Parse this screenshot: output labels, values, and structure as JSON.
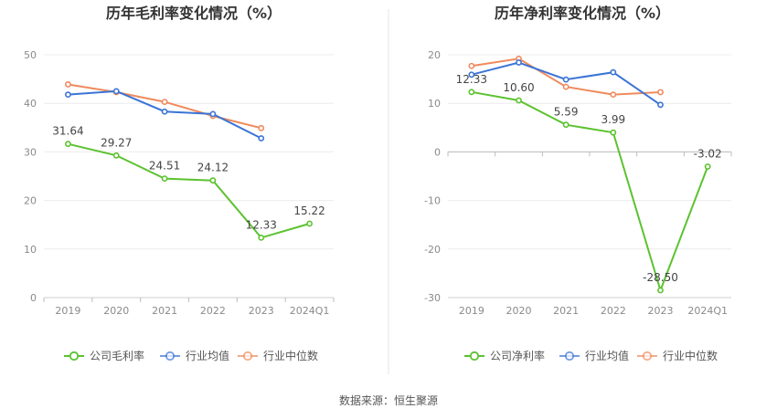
{
  "source_text": "数据来源：恒生聚源",
  "chart_data": [
    {
      "type": "line",
      "title": "历年毛利率变化情况（%）",
      "categories": [
        "2019",
        "2020",
        "2021",
        "2022",
        "2023",
        "2024Q1"
      ],
      "ylim": [
        0,
        50
      ],
      "yticks": [
        0,
        10,
        20,
        30,
        40,
        50
      ],
      "grid": true,
      "legend_position": "bottom",
      "series": [
        {
          "name": "公司毛利率",
          "color": "#5cc22f",
          "labels": true,
          "values": [
            31.64,
            29.27,
            24.51,
            24.12,
            12.33,
            15.22
          ]
        },
        {
          "name": "行业均值",
          "color": "#3b74d6",
          "labels": false,
          "values": [
            41.8,
            42.5,
            38.3,
            37.8,
            32.8,
            null
          ]
        },
        {
          "name": "行业中位数",
          "color": "#ef8a5c",
          "labels": false,
          "values": [
            43.9,
            42.3,
            40.3,
            37.4,
            34.9,
            null
          ]
        }
      ]
    },
    {
      "type": "line",
      "title": "历年净利率变化情况（%）",
      "categories": [
        "2019",
        "2020",
        "2021",
        "2022",
        "2023",
        "2024Q1"
      ],
      "ylim": [
        -30,
        20
      ],
      "yticks": [
        -30,
        -20,
        -10,
        0,
        10,
        20
      ],
      "grid": true,
      "legend_position": "bottom",
      "series": [
        {
          "name": "公司净利率",
          "color": "#5cc22f",
          "labels": true,
          "values": [
            12.33,
            10.6,
            5.59,
            3.99,
            -28.5,
            -3.02
          ]
        },
        {
          "name": "行业均值",
          "color": "#3b74d6",
          "labels": false,
          "values": [
            15.9,
            18.4,
            14.9,
            16.4,
            9.7,
            null
          ]
        },
        {
          "name": "行业中位数",
          "color": "#ef8a5c",
          "labels": false,
          "values": [
            17.7,
            19.2,
            13.4,
            11.8,
            12.3,
            null
          ]
        }
      ]
    }
  ]
}
